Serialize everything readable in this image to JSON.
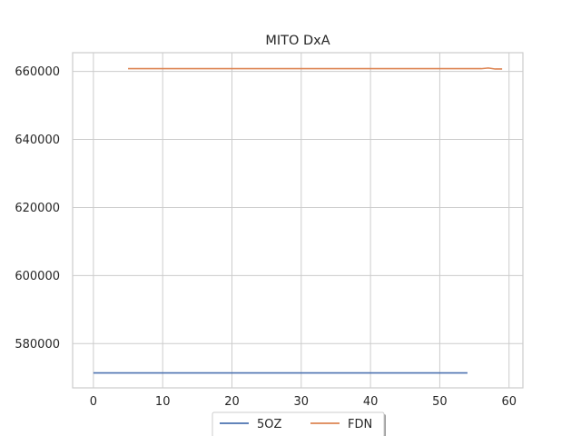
{
  "chart_data": {
    "type": "line",
    "title": "MITO DxA",
    "xlabel": "",
    "ylabel": "",
    "xlim": [
      -3,
      62
    ],
    "ylim": [
      567000,
      665500
    ],
    "xticks": [
      0,
      10,
      20,
      30,
      40,
      50,
      60
    ],
    "yticks": [
      580000,
      600000,
      620000,
      640000,
      660000
    ],
    "grid": true,
    "legend_placement": "bottom-center",
    "series": [
      {
        "name": "5OZ",
        "color": "#4c72b0",
        "points": [
          [
            0,
            571400
          ],
          [
            54,
            571400
          ]
        ]
      },
      {
        "name": "FDN",
        "color": "#dd8452",
        "points": [
          [
            5,
            660800
          ],
          [
            56,
            660800
          ],
          [
            57,
            661000
          ],
          [
            58,
            660700
          ],
          [
            59,
            660700
          ]
        ]
      }
    ]
  }
}
